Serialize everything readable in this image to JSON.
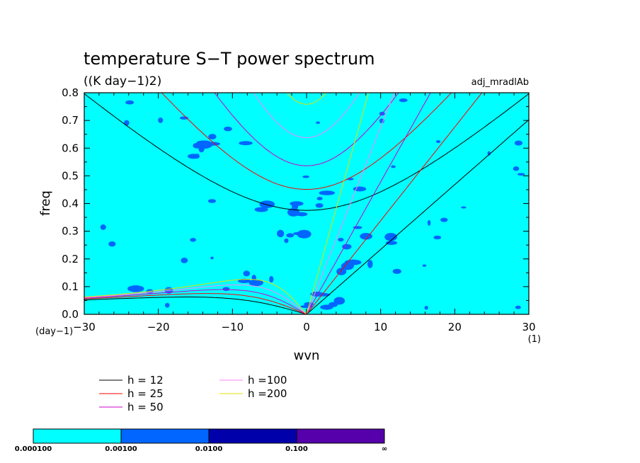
{
  "chart_data": {
    "type": "heatmap",
    "title": "temperature S−T power spectrum",
    "subtitle": "((K day−1)2)",
    "annotation": "adj_mradlAb",
    "xlabel": "wvn",
    "ylabel": "freq",
    "x_unit": "(1)",
    "y_unit": "(day−1)",
    "xlim": [
      -30,
      30
    ],
    "ylim": [
      0,
      0.8
    ],
    "xticks": [
      -30,
      -20,
      -10,
      0,
      10,
      20,
      30
    ],
    "xtick_labels": [
      "−30",
      "−20",
      "−10",
      "0",
      "10",
      "20",
      "30"
    ],
    "yticks": [
      0,
      0.1,
      0.2,
      0.3,
      0.4,
      0.5,
      0.6,
      0.7,
      0.8
    ],
    "ytick_labels": [
      "0.0",
      "0.1",
      "0.2",
      "0.3",
      "0.4",
      "0.5",
      "0.6",
      "0.7",
      "0.8"
    ],
    "colorbar": {
      "labels": [
        "0.000100",
        "0.00100",
        "0.0100",
        "0.100",
        "∞"
      ],
      "colors": [
        "#00ffff",
        "#0066ff",
        "#0000aa",
        "#5500aa"
      ]
    },
    "series": [
      {
        "name": "h = 12",
        "color": "#000000",
        "h": 12
      },
      {
        "name": "h = 25",
        "color": "#ff0000",
        "h": 25
      },
      {
        "name": "h = 50",
        "color": "#cc00cc",
        "h": 50
      },
      {
        "name": "h =100",
        "color": "#ff80ff",
        "h": 100
      },
      {
        "name": "h =200",
        "color": "#e0e000",
        "h": 200
      }
    ]
  }
}
